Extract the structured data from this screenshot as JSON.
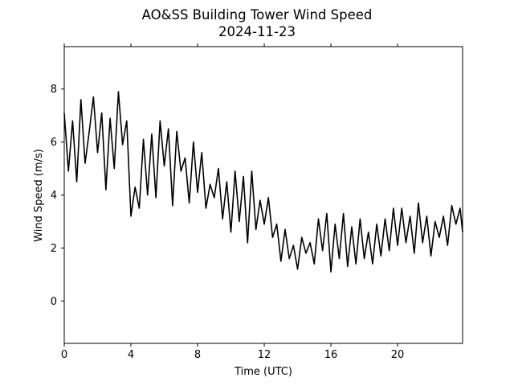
{
  "chart_data": {
    "type": "line",
    "title": "AO&SS Building Tower Wind Speed",
    "subtitle": "2024-11-23",
    "xlabel": "Time (UTC)",
    "ylabel": "Wind Speed (m/s)",
    "xlim": [
      0,
      23.9
    ],
    "ylim": [
      -1.6,
      9.6
    ],
    "xticks": [
      0,
      4,
      8,
      12,
      16,
      20
    ],
    "xtick_labels": [
      "0",
      "4",
      "8",
      "12",
      "16",
      "20"
    ],
    "yticks": [
      0,
      2,
      4,
      6,
      8
    ],
    "ytick_labels": [
      "0",
      "2",
      "4",
      "6",
      "8"
    ],
    "grid": false,
    "series": [
      {
        "color": "#000000",
        "x": [
          0.0,
          0.25,
          0.5,
          0.75,
          1.0,
          1.25,
          1.5,
          1.75,
          2.0,
          2.25,
          2.5,
          2.75,
          3.0,
          3.25,
          3.5,
          3.75,
          4.0,
          4.25,
          4.5,
          4.75,
          5.0,
          5.25,
          5.5,
          5.75,
          6.0,
          6.25,
          6.5,
          6.75,
          7.0,
          7.25,
          7.5,
          7.75,
          8.0,
          8.25,
          8.5,
          8.75,
          9.0,
          9.25,
          9.5,
          9.75,
          10.0,
          10.25,
          10.5,
          10.75,
          11.0,
          11.25,
          11.5,
          11.75,
          12.0,
          12.25,
          12.5,
          12.75,
          13.0,
          13.25,
          13.5,
          13.75,
          14.0,
          14.25,
          14.5,
          14.75,
          15.0,
          15.25,
          15.5,
          15.75,
          16.0,
          16.25,
          16.5,
          16.75,
          17.0,
          17.25,
          17.5,
          17.75,
          18.0,
          18.25,
          18.5,
          18.75,
          19.0,
          19.25,
          19.5,
          19.75,
          20.0,
          20.25,
          20.5,
          20.75,
          21.0,
          21.25,
          21.5,
          21.75,
          22.0,
          22.25,
          22.5,
          22.75,
          23.0,
          23.25,
          23.5,
          23.75,
          23.9
        ],
        "values": [
          7.1,
          4.9,
          6.8,
          4.5,
          7.6,
          5.2,
          6.4,
          7.7,
          5.6,
          7.1,
          4.2,
          6.9,
          5.0,
          7.9,
          5.9,
          6.8,
          3.2,
          4.3,
          3.5,
          6.1,
          4.0,
          6.3,
          3.9,
          6.8,
          5.1,
          6.5,
          3.6,
          6.4,
          4.9,
          5.4,
          3.7,
          6.0,
          4.1,
          5.6,
          3.5,
          4.4,
          3.9,
          5.0,
          3.1,
          4.5,
          2.6,
          4.9,
          3.0,
          4.7,
          2.2,
          4.9,
          2.7,
          3.8,
          2.9,
          3.9,
          2.4,
          2.9,
          1.5,
          2.7,
          1.6,
          2.1,
          1.2,
          2.4,
          1.8,
          2.2,
          1.4,
          3.1,
          1.9,
          3.3,
          1.1,
          2.9,
          1.6,
          3.3,
          1.3,
          2.8,
          1.4,
          3.1,
          1.6,
          2.6,
          1.4,
          2.9,
          1.7,
          3.1,
          1.9,
          3.5,
          2.1,
          3.5,
          2.2,
          3.2,
          1.8,
          3.7,
          2.2,
          3.2,
          1.7,
          3.0,
          2.4,
          3.2,
          2.1,
          3.6,
          2.9,
          3.5,
          2.6
        ]
      }
    ]
  }
}
